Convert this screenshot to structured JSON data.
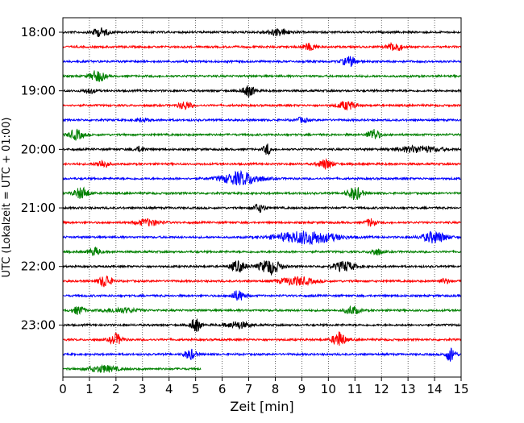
{
  "chart_data": {
    "type": "line",
    "title": "",
    "xlabel": "Zeit  [min]",
    "ylabel": "UTC (Lokalzeit = UTC + 01:00)",
    "xlim": [
      0,
      15
    ],
    "x_ticks": [
      "0",
      "1",
      "2",
      "3",
      "4",
      "5",
      "6",
      "7",
      "8",
      "9",
      "10",
      "11",
      "12",
      "13",
      "14",
      "15"
    ],
    "y_tick_labels": [
      {
        "time": "18:00",
        "trace_index": 0
      },
      {
        "time": "19:00",
        "trace_index": 4
      },
      {
        "time": "20:00",
        "trace_index": 8
      },
      {
        "time": "21:00",
        "trace_index": 12
      },
      {
        "time": "22:00",
        "trace_index": 16
      },
      {
        "time": "23:00",
        "trace_index": 20
      }
    ],
    "grid": "vertical dotted at each minute",
    "trace_colors": [
      "#000000",
      "#ff0000",
      "#0000ff",
      "#008000"
    ],
    "trace_interval_minutes": 15,
    "series": [
      {
        "start": "18:00",
        "color": "#000000",
        "end_min": 15,
        "bursts": [
          [
            1.4,
            0.7,
            5
          ],
          [
            8.1,
            1.0,
            4
          ]
        ]
      },
      {
        "start": "18:15",
        "color": "#ff0000",
        "end_min": 15,
        "bursts": [
          [
            9.3,
            0.6,
            4
          ],
          [
            12.5,
            0.6,
            6
          ]
        ]
      },
      {
        "start": "18:30",
        "color": "#0000ff",
        "end_min": 15,
        "bursts": [
          [
            10.8,
            0.6,
            6
          ]
        ]
      },
      {
        "start": "18:45",
        "color": "#008000",
        "end_min": 15,
        "bursts": [
          [
            1.3,
            0.6,
            7
          ]
        ]
      },
      {
        "start": "19:00",
        "color": "#000000",
        "end_min": 15,
        "bursts": [
          [
            1.0,
            0.5,
            3
          ],
          [
            7.0,
            0.5,
            7
          ]
        ]
      },
      {
        "start": "19:15",
        "color": "#ff0000",
        "end_min": 15,
        "bursts": [
          [
            4.6,
            0.5,
            5
          ],
          [
            10.7,
            0.8,
            5
          ]
        ]
      },
      {
        "start": "19:30",
        "color": "#0000ff",
        "end_min": 15,
        "bursts": [
          [
            3.0,
            0.6,
            2
          ],
          [
            9.0,
            0.5,
            3
          ]
        ]
      },
      {
        "start": "19:45",
        "color": "#008000",
        "end_min": 15,
        "bursts": [
          [
            0.5,
            0.6,
            6
          ],
          [
            11.7,
            0.5,
            7
          ]
        ]
      },
      {
        "start": "20:00",
        "color": "#000000",
        "end_min": 15,
        "bursts": [
          [
            2.9,
            0.5,
            3
          ],
          [
            7.7,
            0.3,
            7
          ],
          [
            13.4,
            1.8,
            4
          ]
        ]
      },
      {
        "start": "20:15",
        "color": "#ff0000",
        "end_min": 15,
        "bursts": [
          [
            1.5,
            0.5,
            5
          ],
          [
            9.9,
            0.6,
            6
          ]
        ]
      },
      {
        "start": "20:30",
        "color": "#0000ff",
        "end_min": 15,
        "bursts": [
          [
            6.7,
            1.6,
            8
          ]
        ]
      },
      {
        "start": "20:45",
        "color": "#008000",
        "end_min": 15,
        "bursts": [
          [
            0.7,
            0.6,
            7
          ],
          [
            11.0,
            0.6,
            8
          ]
        ]
      },
      {
        "start": "21:00",
        "color": "#000000",
        "end_min": 15,
        "bursts": [
          [
            7.4,
            0.5,
            5
          ]
        ]
      },
      {
        "start": "21:15",
        "color": "#ff0000",
        "end_min": 15,
        "bursts": [
          [
            3.2,
            1.0,
            4
          ],
          [
            11.6,
            0.4,
            5
          ]
        ]
      },
      {
        "start": "21:30",
        "color": "#0000ff",
        "end_min": 15,
        "bursts": [
          [
            9.2,
            2.4,
            8
          ],
          [
            14.0,
            1.0,
            7
          ]
        ]
      },
      {
        "start": "21:45",
        "color": "#008000",
        "end_min": 15,
        "bursts": [
          [
            1.2,
            0.5,
            5
          ],
          [
            11.8,
            0.5,
            4
          ]
        ]
      },
      {
        "start": "22:00",
        "color": "#000000",
        "end_min": 15,
        "bursts": [
          [
            6.6,
            0.6,
            7
          ],
          [
            7.8,
            0.9,
            9
          ],
          [
            10.6,
            0.9,
            6
          ]
        ]
      },
      {
        "start": "22:15",
        "color": "#ff0000",
        "end_min": 15,
        "bursts": [
          [
            1.6,
            0.5,
            8
          ],
          [
            8.8,
            1.4,
            5
          ],
          [
            14.4,
            0.4,
            3
          ]
        ]
      },
      {
        "start": "22:30",
        "color": "#0000ff",
        "end_min": 15,
        "bursts": [
          [
            6.6,
            0.6,
            6
          ]
        ]
      },
      {
        "start": "22:45",
        "color": "#008000",
        "end_min": 15,
        "bursts": [
          [
            0.6,
            0.5,
            5
          ],
          [
            2.2,
            1.3,
            3
          ],
          [
            10.9,
            0.6,
            5
          ]
        ]
      },
      {
        "start": "23:00",
        "color": "#000000",
        "end_min": 15,
        "bursts": [
          [
            5.0,
            0.4,
            9
          ],
          [
            6.6,
            1.0,
            4
          ]
        ]
      },
      {
        "start": "23:15",
        "color": "#ff0000",
        "end_min": 15,
        "bursts": [
          [
            2.0,
            0.5,
            7
          ],
          [
            10.4,
            0.5,
            10
          ]
        ]
      },
      {
        "start": "23:30",
        "color": "#0000ff",
        "end_min": 15,
        "bursts": [
          [
            4.8,
            0.5,
            6
          ],
          [
            14.6,
            0.4,
            9
          ]
        ]
      },
      {
        "start": "23:45",
        "color": "#008000",
        "end_min": 5.2,
        "bursts": [
          [
            1.5,
            1.2,
            4
          ]
        ]
      }
    ]
  }
}
